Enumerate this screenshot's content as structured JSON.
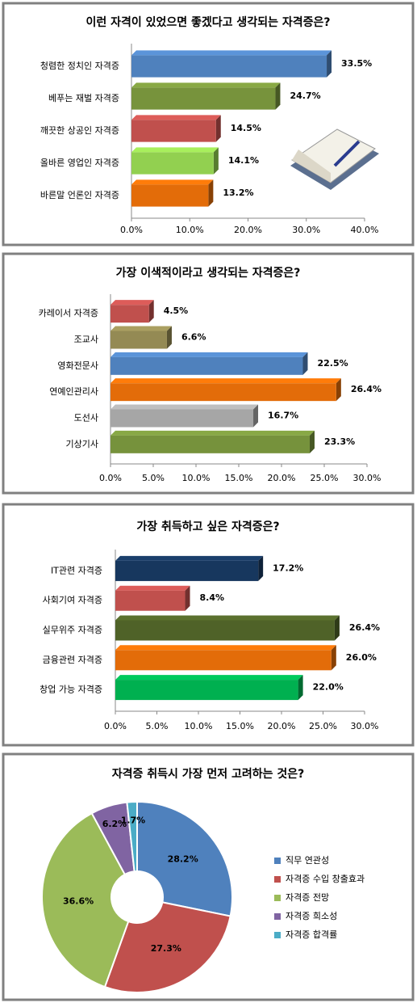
{
  "chart_data": [
    {
      "type": "bar",
      "orientation": "horizontal",
      "title": "이런 자격이 있었으면 좋겠다고 생각되는 자격증은?",
      "categories": [
        "청렴한 정치인 자격증",
        "베푸는 재벌 자격증",
        "깨끗한 상공인 자격증",
        "올바른 영업인 자격증",
        "바른말 언론인 자격증"
      ],
      "values": [
        33.5,
        24.7,
        14.5,
        14.1,
        13.2
      ],
      "value_labels": [
        "33.5%",
        "24.7%",
        "14.5%",
        "14.1%",
        "13.2%"
      ],
      "colors": [
        "#4f81bd",
        "#77933c",
        "#c0504d",
        "#92d050",
        "#e36c09"
      ],
      "xlim": [
        0,
        40
      ],
      "xticks": [
        {
          "value": 0,
          "label": "0.0%"
        },
        {
          "value": 10,
          "label": "10.0%"
        },
        {
          "value": 20,
          "label": "20.0%"
        },
        {
          "value": 30,
          "label": "30.0%"
        },
        {
          "value": 40,
          "label": "40.0%"
        }
      ]
    },
    {
      "type": "bar",
      "orientation": "horizontal",
      "title": "가장 이색적이라고 생각되는 자격증은?",
      "categories": [
        "카레이서 자격증",
        "조교사",
        "영화전문사",
        "연예인관리사",
        "도선사",
        "기상기사"
      ],
      "values": [
        4.5,
        6.6,
        22.5,
        26.4,
        16.7,
        23.3
      ],
      "value_labels": [
        "4.5%",
        "6.6%",
        "22.5%",
        "26.4%",
        "16.7%",
        "23.3%"
      ],
      "colors": [
        "#c0504d",
        "#948a54",
        "#4f81bd",
        "#e36c09",
        "#a6a6a6",
        "#76923c"
      ],
      "xlim": [
        0,
        30
      ],
      "xticks": [
        {
          "value": 0,
          "label": "0.0%"
        },
        {
          "value": 5,
          "label": "5.0%"
        },
        {
          "value": 10,
          "label": "10.0%"
        },
        {
          "value": 15,
          "label": "15.0%"
        },
        {
          "value": 20,
          "label": "20.0%"
        },
        {
          "value": 25,
          "label": "25.0%"
        },
        {
          "value": 30,
          "label": "30.0%"
        }
      ]
    },
    {
      "type": "bar",
      "orientation": "horizontal",
      "title": "가장 취득하고 싶은 자격증은?",
      "categories": [
        "IT관련 자격증",
        "사회기여 자격증",
        "실무위주 자격증",
        "금융관련 자격증",
        "창업 가능 자격증"
      ],
      "values": [
        17.2,
        8.4,
        26.4,
        26.0,
        22.0
      ],
      "value_labels": [
        "17.2%",
        "8.4%",
        "26.4%",
        "26.0%",
        "22.0%"
      ],
      "colors": [
        "#17375e",
        "#c0504d",
        "#4f6228",
        "#e36c09",
        "#00b050"
      ],
      "xlim": [
        0,
        30
      ],
      "xticks": [
        {
          "value": 0,
          "label": "0.0%"
        },
        {
          "value": 5,
          "label": "5.0%"
        },
        {
          "value": 10,
          "label": "10.0%"
        },
        {
          "value": 15,
          "label": "15.0%"
        },
        {
          "value": 20,
          "label": "20.0%"
        },
        {
          "value": 25,
          "label": "25.0%"
        },
        {
          "value": 30,
          "label": "30.0%"
        }
      ]
    },
    {
      "type": "pie",
      "donut": true,
      "title": "자격증 취득시 가장 먼저 고려하는 것은?",
      "categories": [
        "직무 연관성",
        "자격증 수입 창출효과",
        "자격증 전망",
        "자격증 희소성",
        "자격증 합격률"
      ],
      "values": [
        28.2,
        27.3,
        36.6,
        6.2,
        1.7
      ],
      "value_labels": [
        "28.2%",
        "27.3%",
        "36.6%",
        "6.2%",
        "1.7%"
      ],
      "colors": [
        "#4f81bd",
        "#c0504d",
        "#9bbb59",
        "#8064a2",
        "#4bacc6"
      ],
      "legend": "right"
    }
  ]
}
